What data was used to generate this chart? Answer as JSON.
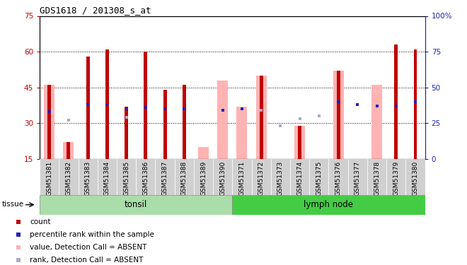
{
  "title": "GDS1618 / 201308_s_at",
  "samples": [
    "GSM51381",
    "GSM51382",
    "GSM51383",
    "GSM51384",
    "GSM51385",
    "GSM51386",
    "GSM51387",
    "GSM51388",
    "GSM51389",
    "GSM51390",
    "GSM51371",
    "GSM51372",
    "GSM51373",
    "GSM51374",
    "GSM51375",
    "GSM51376",
    "GSM51377",
    "GSM51378",
    "GSM51379",
    "GSM51380"
  ],
  "red_bar": [
    null,
    null,
    58,
    61,
    37,
    60,
    44,
    46,
    null,
    null,
    null,
    null,
    null,
    null,
    null,
    null,
    null,
    null,
    63,
    61
  ],
  "red_absent": [
    46,
    22,
    null,
    null,
    null,
    null,
    null,
    null,
    null,
    null,
    null,
    50,
    15,
    29,
    null,
    52,
    null,
    null,
    null,
    null
  ],
  "pink_bar": [
    46,
    22,
    null,
    null,
    null,
    null,
    null,
    null,
    20,
    48,
    37,
    50,
    15,
    29,
    null,
    52,
    null,
    46,
    null,
    null
  ],
  "blue_rank": [
    33,
    null,
    38,
    38,
    35,
    36,
    35,
    35,
    null,
    34,
    35,
    null,
    null,
    null,
    null,
    40,
    38,
    37,
    37,
    40
  ],
  "lightblue_rank": [
    null,
    27,
    null,
    null,
    29,
    null,
    null,
    null,
    null,
    null,
    null,
    34,
    23,
    28,
    30,
    null,
    null,
    null,
    null,
    null
  ],
  "tonsil_count": 10,
  "lymph_count": 10,
  "ylim_left": [
    15,
    75
  ],
  "ylim_right": [
    0,
    100
  ],
  "yticks_left": [
    15,
    30,
    45,
    60,
    75
  ],
  "yticks_right": [
    0,
    25,
    50,
    75,
    100
  ],
  "color_red": "#c00000",
  "color_pink": "#ffb3b3",
  "color_blue": "#2222bb",
  "color_lightblue": "#aaaacc",
  "color_tonsil_light": "#bbeeaa",
  "color_tonsil_dark": "#44cc44",
  "color_lymph_light": "#bbeeaa",
  "color_lymph_dark": "#33cc33"
}
